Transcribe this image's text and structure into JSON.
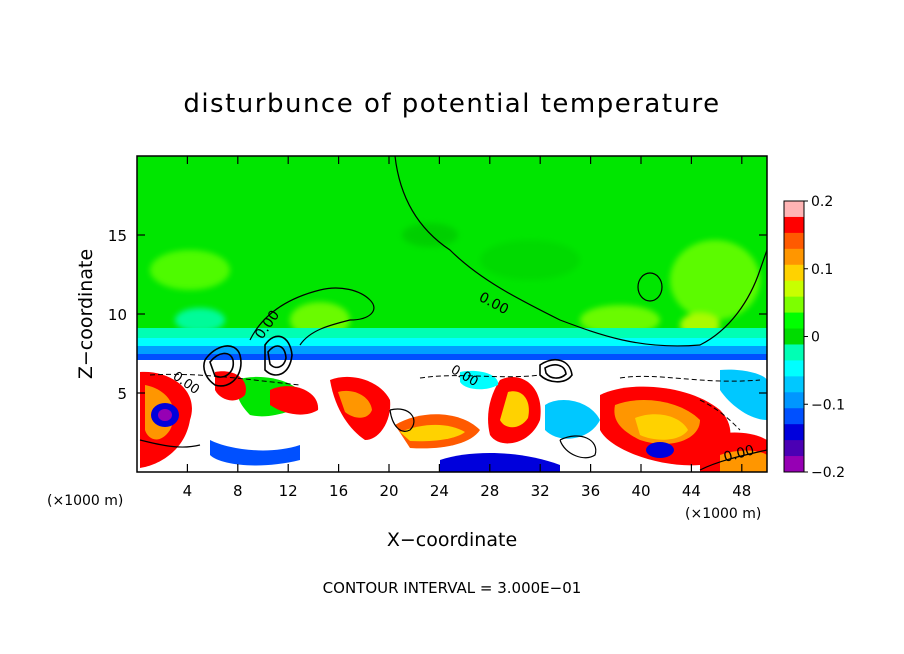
{
  "chart_data": {
    "type": "heatmap",
    "title": "disturbunce of potential temperature",
    "xlabel": "X−coordinate",
    "ylabel": "Z−coordinate",
    "x_unit": "(×1000 m)",
    "x_unit_right": "(×1000 m)",
    "xlim": [
      0,
      50
    ],
    "ylim": [
      0,
      20
    ],
    "x_ticks": [
      4,
      8,
      12,
      16,
      20,
      24,
      28,
      32,
      36,
      40,
      44,
      48
    ],
    "y_ticks": [
      5,
      10,
      15
    ],
    "colorbar": {
      "range": [
        -0.2,
        0.2
      ],
      "tick_values": [
        0.2,
        0.1,
        0,
        -0.1,
        -0.2
      ],
      "tick_labels": [
        "0.2",
        "0.1",
        "0",
        "−0.1",
        "−0.2"
      ],
      "colors": [
        "#ffb4b4",
        "#ff0000",
        "#ff5a00",
        "#ff9600",
        "#ffd200",
        "#c8ff00",
        "#7dff00",
        "#00ff00",
        "#00dc00",
        "#00ffb4",
        "#00ffff",
        "#00c8ff",
        "#0096ff",
        "#0050ff",
        "#0000dc",
        "#4b00b4",
        "#9600b4"
      ]
    },
    "contour_label": "0.00",
    "contour_labels": [
      "0.00",
      "0.00",
      "0.00",
      "0.00",
      "0.00"
    ],
    "contour_interval_text": "CONTOUR INTERVAL = 3.000E−01",
    "layers": {
      "upper_region_value": 0.0,
      "transition_height_km": 7.5,
      "lower_region": "mixed positive/negative anomalies"
    }
  }
}
